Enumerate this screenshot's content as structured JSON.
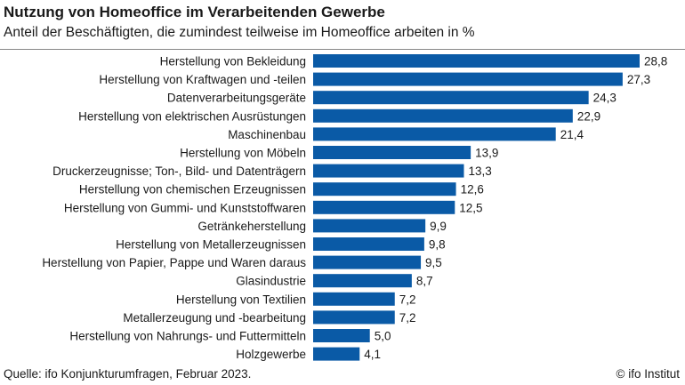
{
  "header": {
    "title": "Nutzung von Homeoffice im Verarbeitenden Gewerbe",
    "subtitle": "Anteil der Beschäftigten, die zumindest teilweise im Homeoffice arbeiten in %"
  },
  "footer": {
    "source": "Quelle: ifo Konjunkturumfragen, Februar 2023.",
    "copyright": "© ifo Institut"
  },
  "colors": {
    "bar": "#0a5aa6",
    "text": "#1a1a1a",
    "rule": "#888888"
  },
  "chart_data": {
    "type": "bar",
    "orientation": "horizontal",
    "title": "Nutzung von Homeoffice im Verarbeitenden Gewerbe",
    "subtitle": "Anteil der Beschäftigten, die zumindest teilweise im Homeoffice arbeiten in %",
    "categories": [
      "Herstellung von Bekleidung",
      "Herstellung von Kraftwagen und -teilen",
      "Datenverarbeitungsgeräte",
      "Herstellung von elektrischen Ausrüstungen",
      "Maschinenbau",
      "Herstellung von Möbeln",
      "Druckerzeugnisse; Ton-, Bild- und Datenträgern",
      "Herstellung von chemischen Erzeugnissen",
      "Herstellung von Gummi- und Kunststoffwaren",
      "Getränkeherstellung",
      "Herstellung von Metallerzeugnissen",
      "Herstellung von Papier, Pappe und Waren daraus",
      "Glasindustrie",
      "Herstellung von Textilien",
      "Metallerzeugung und -bearbeitung",
      "Herstellung von Nahrungs- und Futtermitteln",
      "Holzgewerbe"
    ],
    "values": [
      28.8,
      27.3,
      24.3,
      22.9,
      21.4,
      13.9,
      13.3,
      12.6,
      12.5,
      9.9,
      9.8,
      9.5,
      8.7,
      7.2,
      7.2,
      5.0,
      4.1
    ],
    "value_labels": [
      "28,8",
      "27,3",
      "24,3",
      "22,9",
      "21,4",
      "13,9",
      "13,3",
      "12,6",
      "12,5",
      "9,9",
      "9,8",
      "9,5",
      "8,7",
      "7,2",
      "7,2",
      "5,0",
      "4,1"
    ],
    "xlim": [
      0,
      28.8
    ],
    "grid": false,
    "legend": false
  }
}
